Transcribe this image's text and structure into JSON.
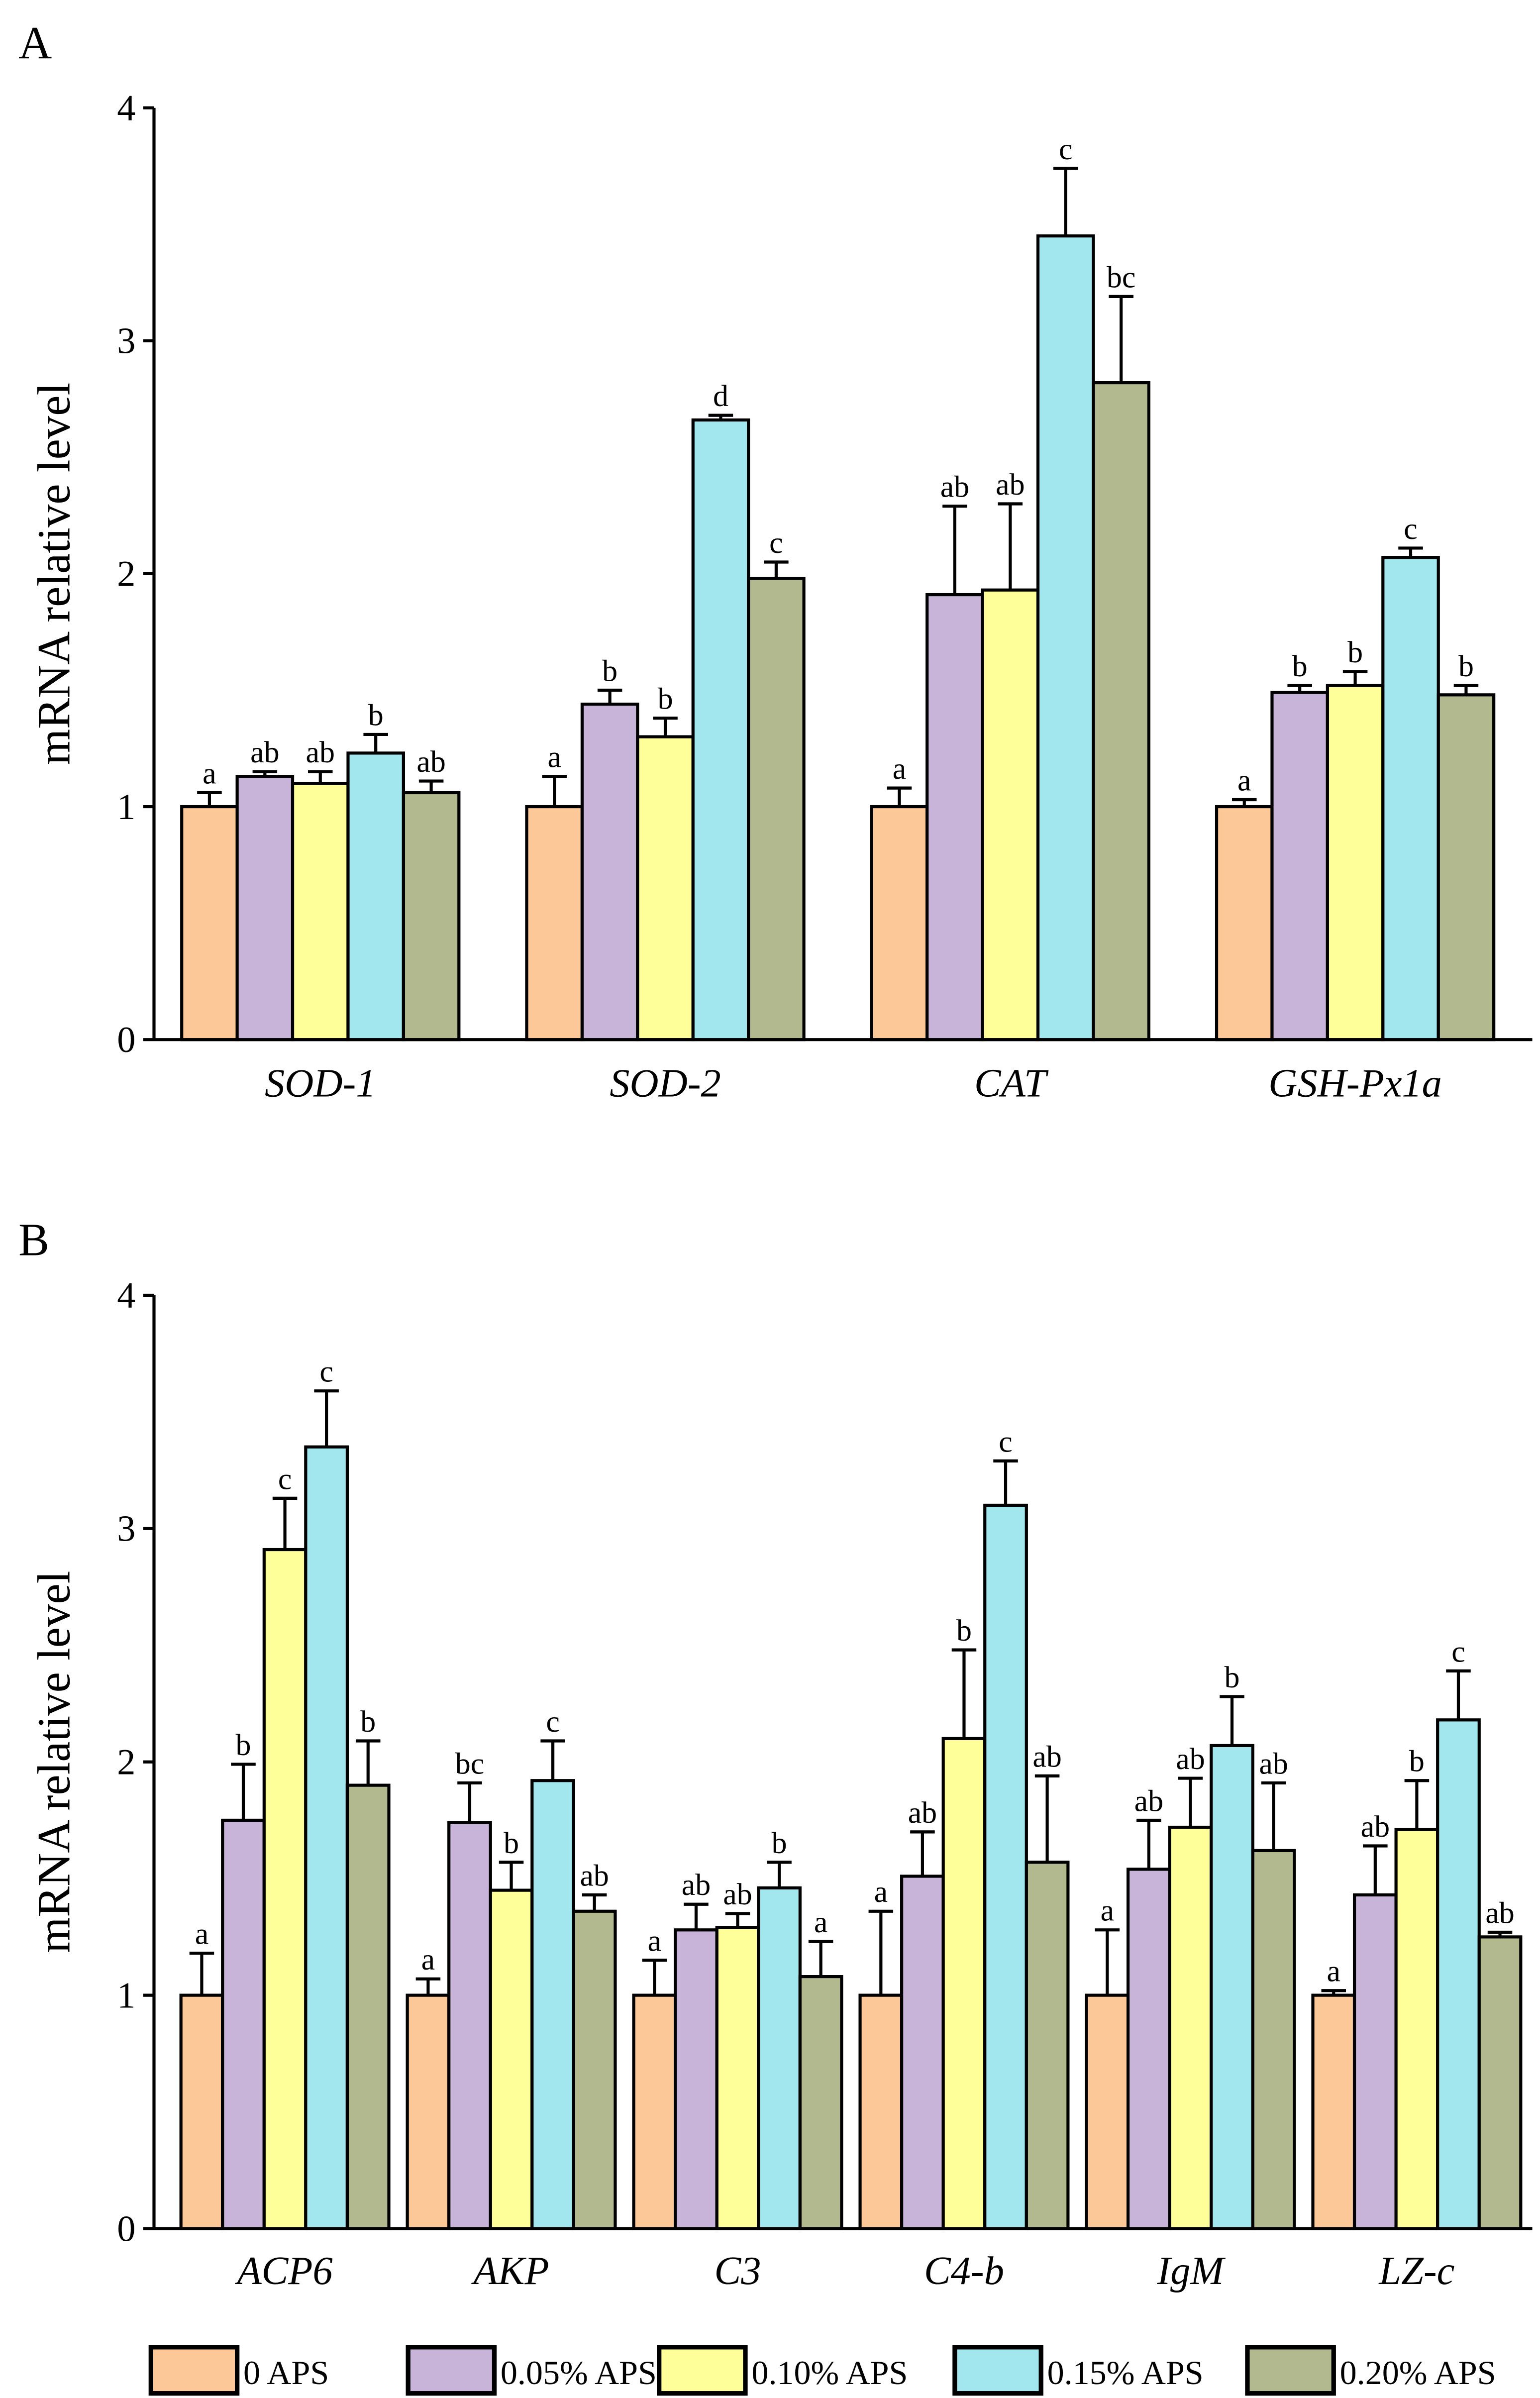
{
  "legend": [
    "0 APS",
    "0.05% APS",
    "0.10% APS",
    "0.15% APS",
    "0.20% APS"
  ],
  "colors": [
    "#FDC898",
    "#C9B4D9",
    "#FFFF99",
    "#A3E7EE",
    "#B3B98F"
  ],
  "chart_data": [
    {
      "type": "bar",
      "panel_label": "A",
      "ylabel": "mRNA relative level",
      "ylim": [
        0,
        4
      ],
      "yticks": [
        "0",
        "1",
        "2",
        "3",
        "4"
      ],
      "categories": [
        "SOD-1",
        "SOD-2",
        "CAT",
        "GSH-Px1a"
      ],
      "series": [
        {
          "name": "0 APS",
          "values": [
            1.0,
            1.0,
            1.0,
            1.0
          ],
          "errors": [
            0.06,
            0.13,
            0.08,
            0.03
          ],
          "letters": [
            "a",
            "a",
            "a",
            "a"
          ]
        },
        {
          "name": "0.05% APS",
          "values": [
            1.13,
            1.44,
            1.91,
            1.49
          ],
          "errors": [
            0.02,
            0.06,
            0.38,
            0.03
          ],
          "letters": [
            "ab",
            "b",
            "ab",
            "b"
          ]
        },
        {
          "name": "0.10% APS",
          "values": [
            1.1,
            1.3,
            1.93,
            1.52
          ],
          "errors": [
            0.05,
            0.08,
            0.37,
            0.06
          ],
          "letters": [
            "ab",
            "b",
            "ab",
            "b"
          ]
        },
        {
          "name": "0.15% APS",
          "values": [
            1.23,
            2.66,
            3.45,
            2.07
          ],
          "errors": [
            0.08,
            0.02,
            0.29,
            0.04
          ],
          "letters": [
            "b",
            "d",
            "c",
            "c"
          ]
        },
        {
          "name": "0.20% APS",
          "values": [
            1.06,
            1.98,
            2.82,
            1.48
          ],
          "errors": [
            0.05,
            0.07,
            0.37,
            0.04
          ],
          "letters": [
            "ab",
            "c",
            "bc",
            "b"
          ]
        }
      ]
    },
    {
      "type": "bar",
      "panel_label": "B",
      "ylabel": "mRNA relative level",
      "ylim": [
        0,
        4
      ],
      "yticks": [
        "0",
        "1",
        "2",
        "3",
        "4"
      ],
      "categories": [
        "ACP6",
        "AKP",
        "C3",
        "C4-b",
        "IgM",
        "LZ-c"
      ],
      "series": [
        {
          "name": "0 APS",
          "values": [
            1.0,
            1.0,
            1.0,
            1.0,
            1.0,
            1.0
          ],
          "errors": [
            0.18,
            0.07,
            0.15,
            0.36,
            0.28,
            0.02
          ],
          "letters": [
            "a",
            "a",
            "a",
            "a",
            "a",
            "a"
          ]
        },
        {
          "name": "0.05% APS",
          "values": [
            1.75,
            1.74,
            1.28,
            1.51,
            1.54,
            1.43
          ],
          "errors": [
            0.24,
            0.17,
            0.11,
            0.19,
            0.21,
            0.21
          ],
          "letters": [
            "b",
            "bc",
            "ab",
            "ab",
            "ab",
            "ab"
          ]
        },
        {
          "name": "0.10% APS",
          "values": [
            2.91,
            1.45,
            1.29,
            2.1,
            1.72,
            1.71
          ],
          "errors": [
            0.22,
            0.12,
            0.06,
            0.38,
            0.21,
            0.21
          ],
          "letters": [
            "c",
            "b",
            "ab",
            "b",
            "ab",
            "b"
          ]
        },
        {
          "name": "0.15% APS",
          "values": [
            3.35,
            1.92,
            1.46,
            3.1,
            2.07,
            2.18
          ],
          "errors": [
            0.24,
            0.17,
            0.11,
            0.19,
            0.21,
            0.21
          ],
          "letters": [
            "c",
            "c",
            "b",
            "c",
            "b",
            "c"
          ]
        },
        {
          "name": "0.20% APS",
          "values": [
            1.9,
            1.36,
            1.08,
            1.57,
            1.62,
            1.25
          ],
          "errors": [
            0.19,
            0.07,
            0.15,
            0.37,
            0.29,
            0.02
          ],
          "letters": [
            "b",
            "ab",
            "a",
            "ab",
            "ab",
            "ab"
          ]
        }
      ]
    }
  ]
}
